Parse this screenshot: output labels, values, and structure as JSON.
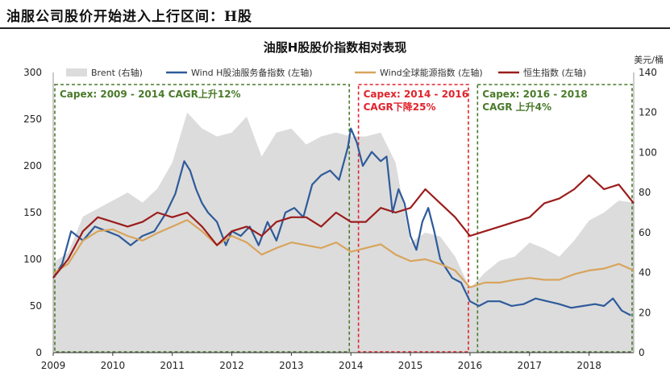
{
  "header": {
    "title": "油服公司股价开始进入上行区间：H股"
  },
  "chart_data": {
    "type": "line",
    "title": "油服H股股价指数相对表现",
    "right_unit": "美元/桶",
    "xlabel": "",
    "ylabel_left": "",
    "ylabel_right": "",
    "x_ticks": [
      "2009",
      "2010",
      "2011",
      "2012",
      "2013",
      "2014",
      "2015",
      "2016",
      "2017",
      "2018"
    ],
    "x_range": [
      2009.0,
      2018.75
    ],
    "y_left": {
      "range": [
        0,
        300
      ],
      "ticks": [
        0,
        50,
        100,
        150,
        200,
        250,
        300
      ]
    },
    "y_right": {
      "range": [
        0,
        140
      ],
      "ticks": [
        0,
        20,
        40,
        60,
        80,
        100,
        120,
        140
      ]
    },
    "legend": [
      {
        "name": "Brent (右轴)",
        "color": "#dcdcdc",
        "kind": "area"
      },
      {
        "name": "Wind H股油服务备指数 (左轴)",
        "color": "#2e5b9a",
        "kind": "line"
      },
      {
        "name": "Wind全球能源指数 (左轴)",
        "color": "#d8a45c",
        "kind": "line"
      },
      {
        "name": "恒生指数 (左轴)",
        "color": "#9b1c1c",
        "kind": "line"
      }
    ],
    "series": [
      {
        "name": "Brent (右轴)",
        "axis": "right",
        "x": [
          2009.0,
          2009.25,
          2009.5,
          2009.75,
          2010.0,
          2010.25,
          2010.5,
          2010.75,
          2011.0,
          2011.25,
          2011.5,
          2011.75,
          2012.0,
          2012.25,
          2012.5,
          2012.75,
          2013.0,
          2013.25,
          2013.5,
          2013.75,
          2014.0,
          2014.25,
          2014.5,
          2014.75,
          2015.0,
          2015.25,
          2015.5,
          2015.75,
          2016.0,
          2016.25,
          2016.5,
          2016.75,
          2017.0,
          2017.25,
          2017.5,
          2017.75,
          2018.0,
          2018.25,
          2018.5,
          2018.75
        ],
        "values": [
          45,
          50,
          68,
          72,
          76,
          80,
          75,
          82,
          95,
          120,
          112,
          108,
          110,
          118,
          98,
          110,
          112,
          104,
          108,
          110,
          108,
          108,
          110,
          95,
          55,
          60,
          58,
          48,
          32,
          40,
          46,
          48,
          55,
          52,
          48,
          56,
          66,
          70,
          76,
          75
        ]
      },
      {
        "name": "Wind H股油服务备指数 (左轴)",
        "axis": "left",
        "x": [
          2009.0,
          2009.15,
          2009.3,
          2009.5,
          2009.7,
          2009.9,
          2010.1,
          2010.3,
          2010.5,
          2010.7,
          2010.9,
          2011.05,
          2011.2,
          2011.3,
          2011.4,
          2011.5,
          2011.6,
          2011.75,
          2011.9,
          2012.0,
          2012.15,
          2012.3,
          2012.45,
          2012.6,
          2012.75,
          2012.9,
          2013.05,
          2013.2,
          2013.35,
          2013.5,
          2013.65,
          2013.8,
          2013.95,
          2014.0,
          2014.1,
          2014.2,
          2014.35,
          2014.5,
          2014.6,
          2014.7,
          2014.8,
          2014.9,
          2015.0,
          2015.1,
          2015.2,
          2015.3,
          2015.4,
          2015.5,
          2015.6,
          2015.7,
          2015.85,
          2016.0,
          2016.15,
          2016.3,
          2016.5,
          2016.7,
          2016.9,
          2017.1,
          2017.3,
          2017.5,
          2017.7,
          2017.9,
          2018.1,
          2018.25,
          2018.4,
          2018.55,
          2018.7
        ],
        "values": [
          80,
          95,
          130,
          120,
          135,
          130,
          125,
          115,
          125,
          130,
          150,
          170,
          205,
          195,
          175,
          160,
          150,
          140,
          115,
          130,
          125,
          135,
          115,
          140,
          120,
          150,
          155,
          145,
          180,
          190,
          195,
          185,
          220,
          240,
          225,
          200,
          215,
          205,
          210,
          150,
          175,
          160,
          125,
          110,
          140,
          155,
          130,
          100,
          90,
          80,
          75,
          55,
          50,
          55,
          55,
          50,
          52,
          58,
          55,
          52,
          48,
          50,
          52,
          50,
          58,
          45,
          40
        ]
      },
      {
        "name": "Wind全球能源指数 (左轴)",
        "axis": "left",
        "x": [
          2009.0,
          2009.25,
          2009.5,
          2009.75,
          2010.0,
          2010.25,
          2010.5,
          2010.75,
          2011.0,
          2011.25,
          2011.5,
          2011.75,
          2012.0,
          2012.25,
          2012.5,
          2012.75,
          2013.0,
          2013.25,
          2013.5,
          2013.75,
          2014.0,
          2014.25,
          2014.5,
          2014.75,
          2015.0,
          2015.25,
          2015.5,
          2015.75,
          2016.0,
          2016.25,
          2016.5,
          2016.75,
          2017.0,
          2017.25,
          2017.5,
          2017.75,
          2018.0,
          2018.25,
          2018.5,
          2018.75
        ],
        "values": [
          85,
          95,
          120,
          130,
          132,
          125,
          120,
          128,
          135,
          142,
          130,
          115,
          125,
          118,
          105,
          112,
          118,
          115,
          112,
          118,
          108,
          112,
          116,
          105,
          98,
          100,
          95,
          88,
          70,
          75,
          75,
          78,
          80,
          78,
          78,
          84,
          88,
          90,
          95,
          88
        ]
      },
      {
        "name": "恒生指数 (左轴)",
        "axis": "left",
        "x": [
          2009.0,
          2009.25,
          2009.5,
          2009.75,
          2010.0,
          2010.25,
          2010.5,
          2010.75,
          2011.0,
          2011.25,
          2011.5,
          2011.75,
          2012.0,
          2012.25,
          2012.5,
          2012.75,
          2013.0,
          2013.25,
          2013.5,
          2013.75,
          2014.0,
          2014.25,
          2014.5,
          2014.75,
          2015.0,
          2015.25,
          2015.5,
          2015.75,
          2016.0,
          2016.25,
          2016.5,
          2016.75,
          2017.0,
          2017.25,
          2017.5,
          2017.75,
          2018.0,
          2018.25,
          2018.5,
          2018.75
        ],
        "values": [
          80,
          100,
          130,
          145,
          140,
          135,
          140,
          150,
          145,
          150,
          135,
          115,
          130,
          135,
          125,
          140,
          145,
          145,
          135,
          150,
          140,
          140,
          155,
          150,
          155,
          175,
          160,
          145,
          125,
          130,
          135,
          140,
          145,
          160,
          165,
          175,
          190,
          175,
          180,
          160
        ]
      }
    ],
    "annotations": [
      {
        "label": "Capex: 2009 - 2014 CAGR上升12%",
        "x_range": [
          2009.0,
          2014.0
        ],
        "color": "#4a7a2a"
      },
      {
        "label": "Capex: 2014 - 2016 CAGR下降25%",
        "x_range": [
          2014.1,
          2016.0
        ],
        "color": "#e0232b"
      },
      {
        "label": "Capex: 2016 - 2018 CAGR 上升4%",
        "x_range": [
          2016.1,
          2018.75
        ],
        "color": "#4a7a2a"
      }
    ]
  }
}
